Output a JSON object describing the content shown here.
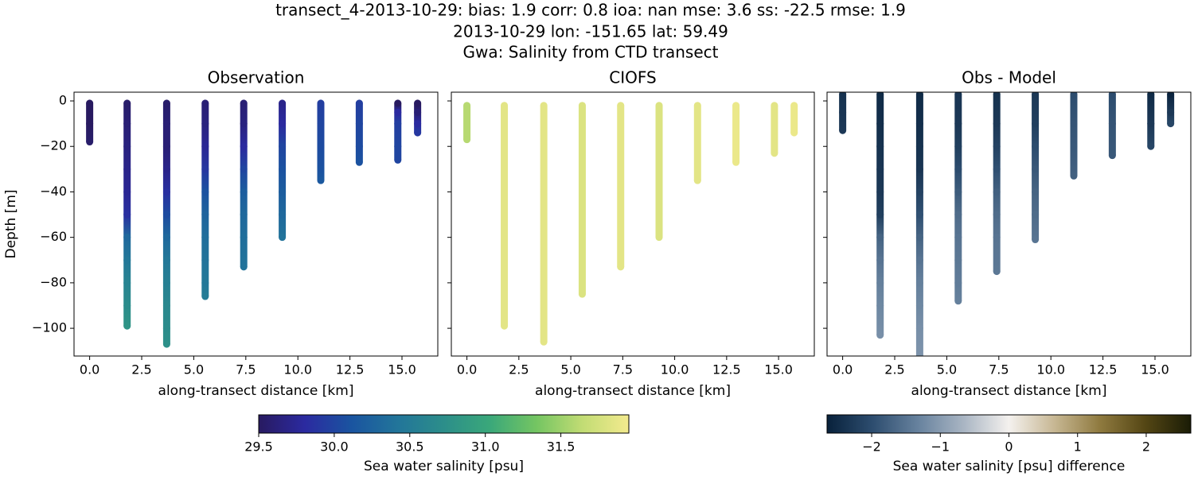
{
  "figure": {
    "title": [
      "transect_4-2013-10-29: bias: 1.9  corr: 0.8  ioa: nan  mse: 3.6  ss: -22.5  rmse: 1.9",
      "2013-10-29 lon: -151.65 lat: 59.49",
      "Gwa: Salinity from CTD transect"
    ]
  },
  "chart_data": [
    {
      "type": "scatter",
      "title": "Observation",
      "xlabel": "along-transect distance [km]",
      "ylabel": "Depth [m]",
      "colorbar": 0,
      "xlim": [
        -0.75,
        16.72
      ],
      "ylim": [
        -112.2,
        3.85
      ],
      "xticks": [
        {
          "value": 0,
          "label": "0.0"
        },
        {
          "value": 2.5,
          "label": "2.5"
        },
        {
          "value": 5,
          "label": "5.0"
        },
        {
          "value": 7.5,
          "label": "7.5"
        },
        {
          "value": 10,
          "label": "10.0"
        },
        {
          "value": 12.5,
          "label": "12.5"
        },
        {
          "value": 15,
          "label": "15.0"
        }
      ],
      "yticks": [
        0,
        {
          "value": -20,
          "label": "−20"
        },
        {
          "value": -40,
          "label": "−40"
        },
        {
          "value": -60,
          "label": "−60"
        },
        {
          "value": -80,
          "label": "−80"
        },
        {
          "value": -100,
          "label": "−100"
        }
      ],
      "casts": [
        {
          "x": 0,
          "depth": [
            -1,
            -10,
            -18
          ],
          "values": [
            29.5,
            29.5,
            29.55
          ]
        },
        {
          "x": 1.8,
          "depth": [
            -1,
            -10,
            -20,
            -30,
            -40,
            -50,
            -60,
            -70,
            -80,
            -90,
            -99
          ],
          "values": [
            29.55,
            29.6,
            29.65,
            29.7,
            29.75,
            29.85,
            30.3,
            30.45,
            30.6,
            30.7,
            30.8
          ]
        },
        {
          "x": 3.7,
          "depth": [
            -1,
            -10,
            -20,
            -30,
            -40,
            -50,
            -60,
            -70,
            -80,
            -90,
            -100,
            -107
          ],
          "values": [
            29.55,
            29.6,
            29.6,
            29.7,
            29.85,
            30.05,
            30.3,
            30.45,
            30.55,
            30.65,
            30.7,
            30.75
          ]
        },
        {
          "x": 5.55,
          "depth": [
            -1,
            -10,
            -20,
            -30,
            -40,
            -50,
            -60,
            -70,
            -80,
            -86
          ],
          "values": [
            29.6,
            29.65,
            29.75,
            29.9,
            30.1,
            30.25,
            30.35,
            30.4,
            30.45,
            30.5
          ]
        },
        {
          "x": 7.4,
          "depth": [
            -1,
            -10,
            -20,
            -30,
            -40,
            -50,
            -60,
            -73
          ],
          "values": [
            29.6,
            29.65,
            29.8,
            30.0,
            30.2,
            30.3,
            30.35,
            30.4
          ]
        },
        {
          "x": 9.25,
          "depth": [
            -1,
            -10,
            -20,
            -30,
            -40,
            -50,
            -60
          ],
          "values": [
            29.7,
            29.8,
            30.0,
            30.1,
            30.2,
            30.3,
            30.4
          ]
        },
        {
          "x": 11.1,
          "depth": [
            -1,
            -10,
            -20,
            -30,
            -35
          ],
          "values": [
            29.95,
            30.0,
            30.05,
            30.1,
            30.15
          ]
        },
        {
          "x": 12.95,
          "depth": [
            -1,
            -10,
            -20,
            -27
          ],
          "values": [
            29.95,
            30.0,
            30.05,
            30.1
          ]
        },
        {
          "x": 14.8,
          "depth": [
            -1,
            -5,
            -10,
            -20,
            -26
          ],
          "values": [
            29.5,
            29.8,
            29.95,
            30.0,
            30.0
          ]
        },
        {
          "x": 15.75,
          "depth": [
            -1,
            -5,
            -10,
            -14
          ],
          "values": [
            29.5,
            29.6,
            29.8,
            29.9
          ]
        }
      ]
    },
    {
      "type": "scatter",
      "title": "CIOFS",
      "xlabel": "along-transect distance [km]",
      "sharey": true,
      "colorbar": 0,
      "xlim": [
        -0.75,
        16.72
      ],
      "ylim": [
        -112.2,
        3.85
      ],
      "xticks": [
        {
          "value": 0,
          "label": "0.0"
        },
        {
          "value": 2.5,
          "label": "2.5"
        },
        {
          "value": 5,
          "label": "5.0"
        },
        {
          "value": 7.5,
          "label": "7.5"
        },
        {
          "value": 10,
          "label": "10.0"
        },
        {
          "value": 12.5,
          "label": "12.5"
        },
        {
          "value": 15,
          "label": "15.0"
        }
      ],
      "casts": [
        {
          "x": 0,
          "depth": [
            -2,
            -17
          ],
          "values": [
            31.6,
            31.6
          ]
        },
        {
          "x": 1.8,
          "depth": [
            -2,
            -99
          ],
          "values": [
            31.85,
            31.85
          ]
        },
        {
          "x": 3.7,
          "depth": [
            -2,
            -106
          ],
          "values": [
            31.85,
            31.85
          ]
        },
        {
          "x": 5.55,
          "depth": [
            -2,
            -85
          ],
          "values": [
            31.8,
            31.8
          ]
        },
        {
          "x": 7.4,
          "depth": [
            -2,
            -73
          ],
          "values": [
            31.85,
            31.85
          ]
        },
        {
          "x": 9.25,
          "depth": [
            -2,
            -60
          ],
          "values": [
            31.8,
            31.8
          ]
        },
        {
          "x": 11.1,
          "depth": [
            -2,
            -35
          ],
          "values": [
            31.85,
            31.85
          ]
        },
        {
          "x": 12.95,
          "depth": [
            -2,
            -27
          ],
          "values": [
            31.9,
            31.9
          ]
        },
        {
          "x": 14.8,
          "depth": [
            -2,
            -23
          ],
          "values": [
            31.85,
            31.85
          ]
        },
        {
          "x": 15.75,
          "depth": [
            -2,
            -14
          ],
          "values": [
            31.9,
            31.9
          ]
        }
      ]
    },
    {
      "type": "scatter",
      "title": "Obs - Model",
      "xlabel": "along-transect distance [km]",
      "sharey": true,
      "colorbar": 1,
      "xlim": [
        -0.75,
        16.72
      ],
      "ylim": [
        -112.2,
        3.85
      ],
      "xticks": [
        {
          "value": 0,
          "label": "0.0"
        },
        {
          "value": 2.5,
          "label": "2.5"
        },
        {
          "value": 5,
          "label": "5.0"
        },
        {
          "value": 7.5,
          "label": "7.5"
        },
        {
          "value": 10,
          "label": "10.0"
        },
        {
          "value": 12.5,
          "label": "12.5"
        },
        {
          "value": 15,
          "label": "15.0"
        }
      ],
      "casts": [
        {
          "x": 0,
          "depth": [
            3,
            -5,
            -13
          ],
          "values": [
            -2.4,
            -2.35,
            -2.3
          ]
        },
        {
          "x": 1.8,
          "depth": [
            3,
            -10,
            -20,
            -30,
            -40,
            -50,
            -60,
            -70,
            -80,
            -90,
            -103
          ],
          "values": [
            -2.5,
            -2.45,
            -2.4,
            -2.35,
            -2.3,
            -2.2,
            -1.7,
            -1.5,
            -1.35,
            -1.25,
            -1.15
          ]
        },
        {
          "x": 3.7,
          "depth": [
            3,
            -10,
            -20,
            -30,
            -40,
            -50,
            -60,
            -70,
            -80,
            -90,
            -100,
            -112
          ],
          "values": [
            -2.5,
            -2.45,
            -2.4,
            -2.35,
            -2.15,
            -1.95,
            -1.7,
            -1.5,
            -1.35,
            -1.25,
            -1.15,
            -1.1
          ]
        },
        {
          "x": 5.55,
          "depth": [
            3,
            -10,
            -20,
            -30,
            -40,
            -50,
            -60,
            -70,
            -80,
            -88
          ],
          "values": [
            -2.35,
            -2.3,
            -2.2,
            -2.0,
            -1.8,
            -1.6,
            -1.5,
            -1.45,
            -1.4,
            -1.35
          ]
        },
        {
          "x": 7.4,
          "depth": [
            3,
            -10,
            -20,
            -30,
            -40,
            -50,
            -60,
            -75
          ],
          "values": [
            -2.4,
            -2.3,
            -2.15,
            -1.95,
            -1.75,
            -1.6,
            -1.5,
            -1.45
          ]
        },
        {
          "x": 9.25,
          "depth": [
            3,
            -10,
            -20,
            -30,
            -40,
            -50,
            -61
          ],
          "values": [
            -2.3,
            -2.2,
            -2.0,
            -1.85,
            -1.7,
            -1.6,
            -1.5
          ]
        },
        {
          "x": 11.1,
          "depth": [
            3,
            -10,
            -20,
            -33
          ],
          "values": [
            -2.0,
            -1.9,
            -1.85,
            -1.75
          ]
        },
        {
          "x": 12.95,
          "depth": [
            3,
            -10,
            -24
          ],
          "values": [
            -2.0,
            -1.9,
            -1.85
          ]
        },
        {
          "x": 14.8,
          "depth": [
            3,
            -10,
            -20
          ],
          "values": [
            -2.5,
            -2.3,
            -2.1
          ]
        },
        {
          "x": 15.75,
          "depth": [
            3,
            -5,
            -10
          ],
          "values": [
            -2.6,
            -2.3,
            -2.1
          ]
        }
      ]
    }
  ],
  "colorbars": [
    {
      "label": "Sea water salinity [psu]",
      "lim": [
        29.5,
        31.95
      ],
      "ticks": [
        29.5,
        {
          "value": 30,
          "label": "30.0"
        },
        30.5,
        {
          "value": 31,
          "label": "31.0"
        },
        31.5
      ],
      "colors": [
        "#281a60",
        "#2b2aa0",
        "#1a54a0",
        "#22759a",
        "#2c8e8a",
        "#3aa87a",
        "#74c562",
        "#c2dc74",
        "#f3ea8e"
      ]
    },
    {
      "label": "Sea water salinity [psu] difference",
      "lim": [
        -2.65,
        2.65
      ],
      "ticks": [
        {
          "value": -2,
          "label": "−2"
        },
        {
          "value": -1,
          "label": "−1"
        },
        0,
        1,
        2
      ],
      "colors": [
        "#08213b",
        "#2d4d6f",
        "#67829e",
        "#a9b5c3",
        "#f4f1ee",
        "#c7b793",
        "#8f7a3f",
        "#544614",
        "#1a1c06"
      ]
    }
  ]
}
